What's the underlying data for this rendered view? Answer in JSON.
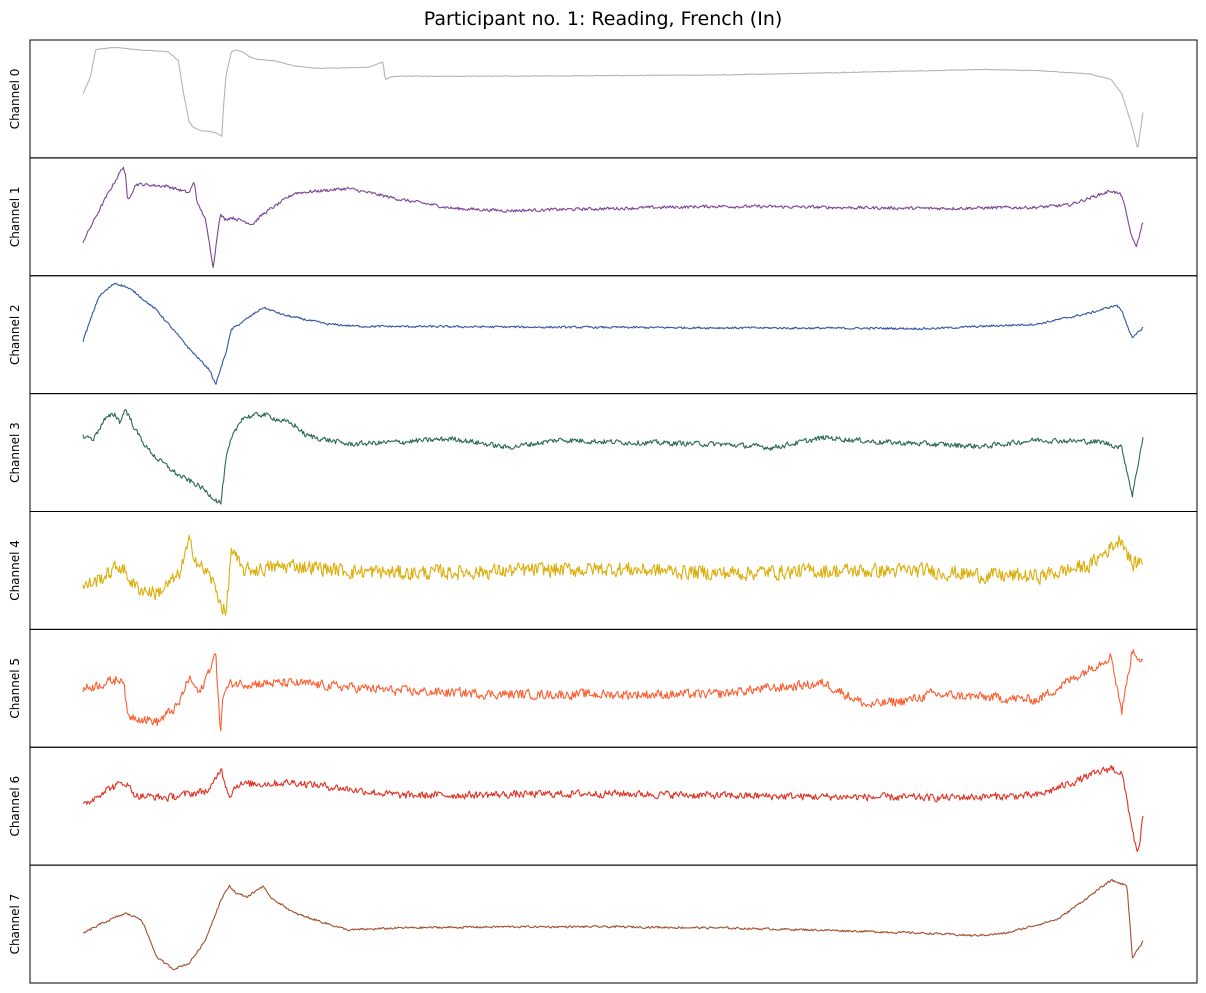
{
  "chart_data": {
    "type": "line",
    "title": "Participant no. 1: Reading, French (In)",
    "x_axis": {
      "ticks": "none",
      "normalized_time": [
        0,
        1
      ]
    },
    "y_axes": {
      "ticks": "none",
      "ylim": [
        0,
        1
      ],
      "note": "each panel normalized 0 (bottom) to 1 (top)"
    },
    "grid": false,
    "legend": "none",
    "series": [
      {
        "name": "Channel 0",
        "color": "#b3b3bb",
        "noise": 0.003,
        "x": [
          0,
          0.007,
          0.012,
          0.03,
          0.05,
          0.08,
          0.09,
          0.094,
          0.1,
          0.104,
          0.11,
          0.12,
          0.125,
          0.131,
          0.133,
          0.135,
          0.14,
          0.145,
          0.152,
          0.158,
          0.165,
          0.18,
          0.2,
          0.22,
          0.27,
          0.283,
          0.285,
          0.29,
          0.3,
          0.4,
          0.6,
          0.8,
          0.85,
          0.9,
          0.95,
          0.97,
          0.98,
          0.99,
          0.995,
          1
        ],
        "y": [
          0.55,
          0.7,
          0.95,
          0.97,
          0.95,
          0.93,
          0.85,
          0.6,
          0.3,
          0.25,
          0.22,
          0.21,
          0.2,
          0.17,
          0.5,
          0.72,
          0.93,
          0.95,
          0.92,
          0.88,
          0.86,
          0.85,
          0.8,
          0.78,
          0.79,
          0.84,
          0.68,
          0.7,
          0.71,
          0.71,
          0.72,
          0.76,
          0.77,
          0.76,
          0.73,
          0.68,
          0.55,
          0.25,
          0.05,
          0.38
        ]
      },
      {
        "name": "Channel 1",
        "color": "#7b4596",
        "noise": 0.015,
        "x": [
          0,
          0.02,
          0.038,
          0.04,
          0.042,
          0.05,
          0.08,
          0.1,
          0.105,
          0.108,
          0.115,
          0.123,
          0.128,
          0.13,
          0.134,
          0.14,
          0.16,
          0.17,
          0.2,
          0.25,
          0.3,
          0.35,
          0.4,
          0.5,
          0.6,
          0.7,
          0.8,
          0.9,
          0.93,
          0.97,
          0.98,
          0.99,
          0.994,
          1
        ],
        "y": [
          0.28,
          0.65,
          0.96,
          0.88,
          0.65,
          0.8,
          0.78,
          0.72,
          0.82,
          0.62,
          0.5,
          0.05,
          0.45,
          0.52,
          0.48,
          0.5,
          0.44,
          0.53,
          0.72,
          0.76,
          0.66,
          0.58,
          0.56,
          0.58,
          0.6,
          0.59,
          0.58,
          0.59,
          0.61,
          0.74,
          0.7,
          0.3,
          0.24,
          0.46
        ]
      },
      {
        "name": "Channel 2",
        "color": "#3457a0",
        "noise": 0.01,
        "x": [
          0,
          0.015,
          0.03,
          0.04,
          0.05,
          0.07,
          0.1,
          0.12,
          0.125,
          0.13,
          0.135,
          0.14,
          0.155,
          0.17,
          0.19,
          0.23,
          0.26,
          0.5,
          0.8,
          0.9,
          0.95,
          0.975,
          0.98,
          0.99,
          1
        ],
        "y": [
          0.45,
          0.85,
          0.97,
          0.94,
          0.88,
          0.72,
          0.38,
          0.18,
          0.05,
          0.2,
          0.35,
          0.55,
          0.65,
          0.75,
          0.68,
          0.6,
          0.58,
          0.57,
          0.56,
          0.6,
          0.7,
          0.77,
          0.72,
          0.47,
          0.57
        ]
      },
      {
        "name": "Channel 3",
        "color": "#2d6a4f",
        "noise": 0.025,
        "x": [
          0,
          0.01,
          0.02,
          0.03,
          0.035,
          0.04,
          0.05,
          0.06,
          0.07,
          0.09,
          0.11,
          0.12,
          0.13,
          0.135,
          0.14,
          0.15,
          0.17,
          0.2,
          0.21,
          0.25,
          0.3,
          0.35,
          0.4,
          0.45,
          0.5,
          0.6,
          0.65,
          0.7,
          0.75,
          0.8,
          0.85,
          0.9,
          0.96,
          0.98,
          0.99,
          1
        ],
        "y": [
          0.65,
          0.63,
          0.8,
          0.85,
          0.78,
          0.9,
          0.7,
          0.55,
          0.45,
          0.3,
          0.2,
          0.12,
          0.05,
          0.45,
          0.62,
          0.82,
          0.85,
          0.75,
          0.66,
          0.58,
          0.6,
          0.63,
          0.55,
          0.62,
          0.6,
          0.58,
          0.55,
          0.64,
          0.6,
          0.58,
          0.56,
          0.62,
          0.6,
          0.55,
          0.12,
          0.65
        ]
      },
      {
        "name": "Channel 4",
        "color": "#dcae0c",
        "noise": 0.07,
        "x": [
          0,
          0.02,
          0.035,
          0.05,
          0.07,
          0.09,
          0.1,
          0.11,
          0.12,
          0.135,
          0.14,
          0.15,
          0.2,
          0.25,
          0.3,
          0.4,
          0.5,
          0.6,
          0.7,
          0.8,
          0.85,
          0.9,
          0.95,
          0.98,
          0.99,
          1
        ],
        "y": [
          0.35,
          0.45,
          0.55,
          0.35,
          0.3,
          0.45,
          0.75,
          0.55,
          0.45,
          0.1,
          0.7,
          0.5,
          0.55,
          0.5,
          0.48,
          0.5,
          0.52,
          0.48,
          0.5,
          0.5,
          0.46,
          0.45,
          0.55,
          0.8,
          0.55,
          0.6
        ]
      },
      {
        "name": "Channel 5",
        "color": "#fb6033",
        "noise": 0.045,
        "x": [
          0,
          0.02,
          0.038,
          0.042,
          0.05,
          0.07,
          0.09,
          0.1,
          0.11,
          0.125,
          0.13,
          0.132,
          0.14,
          0.2,
          0.3,
          0.4,
          0.5,
          0.6,
          0.62,
          0.7,
          0.72,
          0.74,
          0.78,
          0.8,
          0.9,
          0.97,
          0.98,
          0.99,
          1
        ],
        "y": [
          0.5,
          0.55,
          0.6,
          0.25,
          0.25,
          0.2,
          0.35,
          0.6,
          0.45,
          0.82,
          0.1,
          0.45,
          0.55,
          0.55,
          0.48,
          0.45,
          0.45,
          0.45,
          0.48,
          0.55,
          0.45,
          0.35,
          0.4,
          0.45,
          0.4,
          0.8,
          0.3,
          0.85,
          0.75
        ]
      },
      {
        "name": "Channel 6",
        "color": "#df3325",
        "noise": 0.035,
        "x": [
          0,
          0.02,
          0.04,
          0.05,
          0.08,
          0.12,
          0.13,
          0.138,
          0.145,
          0.2,
          0.3,
          0.5,
          0.6,
          0.8,
          0.9,
          0.97,
          0.98,
          0.995,
          1
        ],
        "y": [
          0.5,
          0.65,
          0.72,
          0.6,
          0.58,
          0.65,
          0.85,
          0.6,
          0.7,
          0.72,
          0.6,
          0.62,
          0.6,
          0.58,
          0.6,
          0.85,
          0.8,
          0.05,
          0.4
        ]
      },
      {
        "name": "Channel 7",
        "color": "#a1512d",
        "noise": 0.01,
        "x": [
          0,
          0.02,
          0.04,
          0.055,
          0.07,
          0.085,
          0.1,
          0.115,
          0.125,
          0.13,
          0.138,
          0.145,
          0.155,
          0.17,
          0.175,
          0.2,
          0.25,
          0.3,
          0.4,
          0.5,
          0.6,
          0.7,
          0.8,
          0.84,
          0.87,
          0.92,
          0.97,
          0.985,
          0.99,
          1
        ],
        "y": [
          0.42,
          0.52,
          0.6,
          0.55,
          0.2,
          0.1,
          0.15,
          0.35,
          0.6,
          0.72,
          0.85,
          0.78,
          0.75,
          0.85,
          0.76,
          0.6,
          0.45,
          0.47,
          0.48,
          0.48,
          0.47,
          0.45,
          0.42,
          0.4,
          0.42,
          0.55,
          0.9,
          0.85,
          0.2,
          0.35
        ]
      }
    ]
  }
}
